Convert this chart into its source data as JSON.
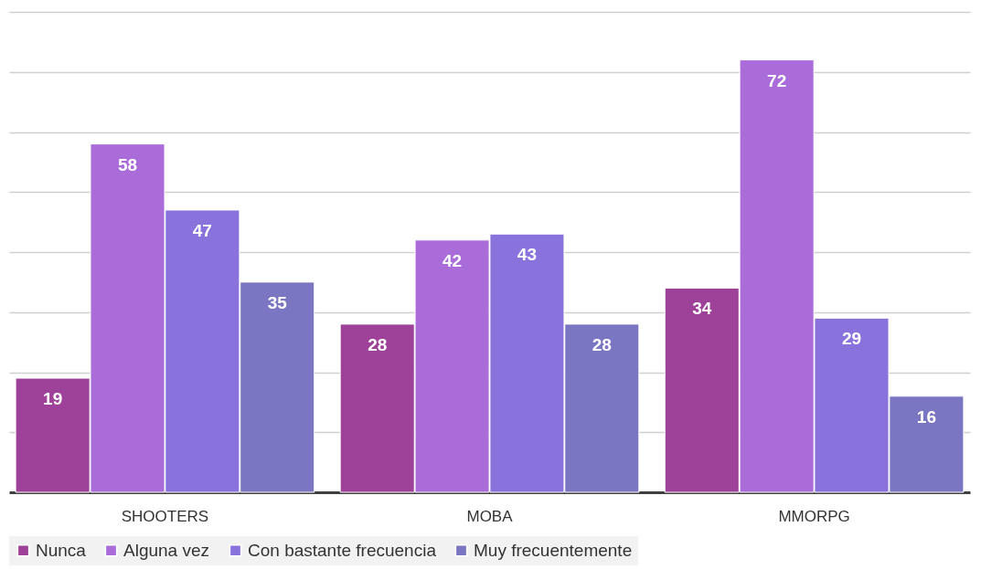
{
  "chart_data": {
    "type": "bar",
    "categories": [
      "SHOOTERS",
      "MOBA",
      "MMORPG"
    ],
    "series": [
      {
        "name": "Nunca",
        "color": "#9d4199",
        "values": [
          19,
          28,
          34
        ]
      },
      {
        "name": "Alguna vez",
        "color": "#a96cd9",
        "values": [
          58,
          42,
          72
        ]
      },
      {
        "name": "Con bastante frecuencia",
        "color": "#8a72dd",
        "values": [
          47,
          43,
          29
        ]
      },
      {
        "name": "Muy frecuentemente",
        "color": "#7b76c2",
        "values": [
          35,
          28,
          16
        ]
      }
    ],
    "ylim": [
      0,
      80
    ],
    "yticks": [
      {
        "value": 0,
        "label": null
      },
      {
        "value": 10,
        "label": null
      },
      {
        "value": 20,
        "label": null
      },
      {
        "value": 30,
        "label": null
      },
      {
        "value": 40,
        "label": null
      },
      {
        "value": 50,
        "label": null
      },
      {
        "value": 60,
        "label": null
      },
      {
        "value": 70,
        "label": null
      },
      {
        "value": 80,
        "label": null
      }
    ],
    "tick_labels": "x",
    "grid": "y",
    "legend": "bottom",
    "data_labels": true
  }
}
